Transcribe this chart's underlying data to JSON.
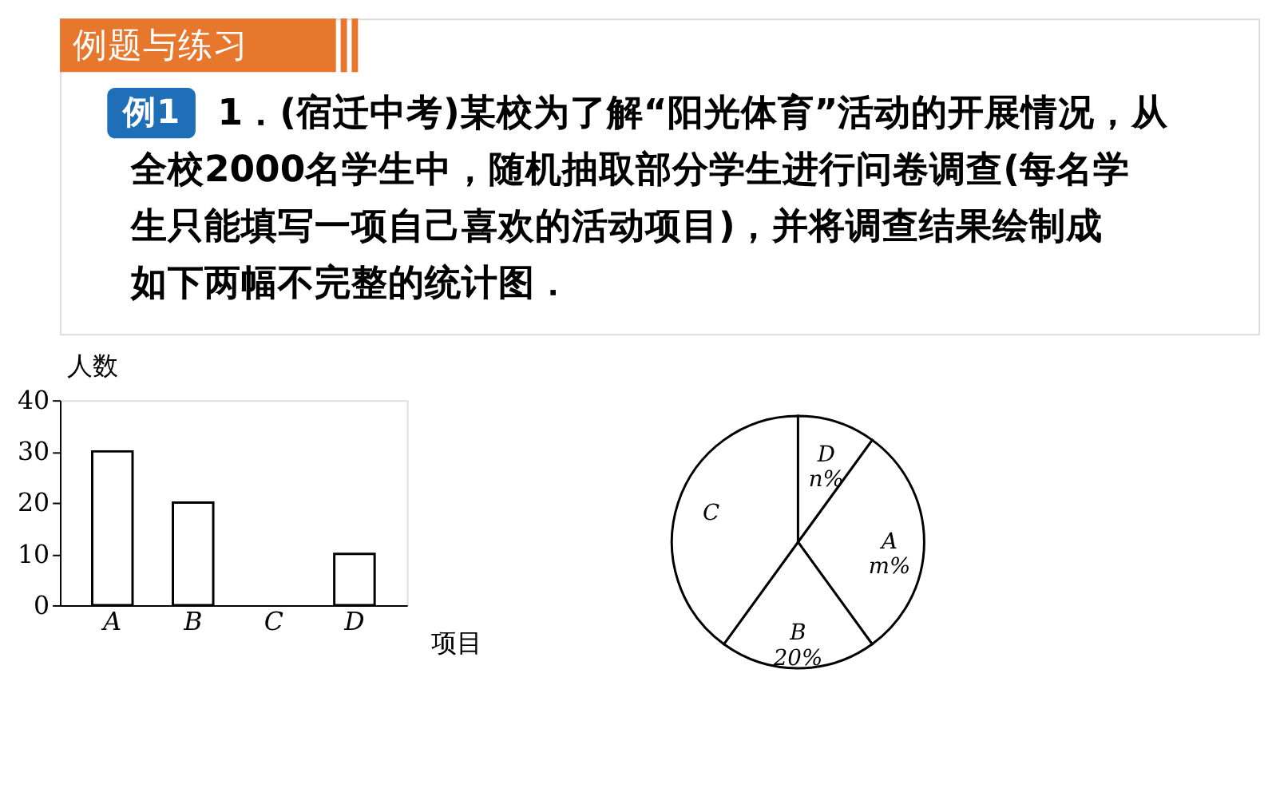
{
  "chart_data": [
    {
      "type": "other",
      "title": "例题与练习",
      "annotations": [
        "例1",
        "1．(宿迁中考)某校为了解“阳光体育”活动的开展情况，从全校2000名学生中，随机抽取部分学生进行问卷调查(每名学生只能填写一项自己喜欢的活动项目)，并将调查结果绘制成如下两幅不完整的统计图．"
      ]
    },
    {
      "type": "bar",
      "categories": [
        "A",
        "B",
        "C",
        "D"
      ],
      "values": [
        30,
        20,
        null,
        10
      ],
      "color": "#ffffff",
      "ylim": [
        0,
        40
      ],
      "yticks": [
        0,
        10,
        20,
        30,
        40
      ],
      "ylabel": "人数",
      "xlabel": "项目"
    },
    {
      "type": "pie",
      "categories": [
        "A",
        "B",
        "C",
        "D"
      ],
      "values": [
        30,
        20,
        40,
        10
      ],
      "colors": [
        "#ffffff",
        "#ffffff",
        "#ffffff",
        "#ffffff"
      ],
      "value_labels": [
        "m%",
        "20%",
        null,
        "n%"
      ]
    }
  ]
}
